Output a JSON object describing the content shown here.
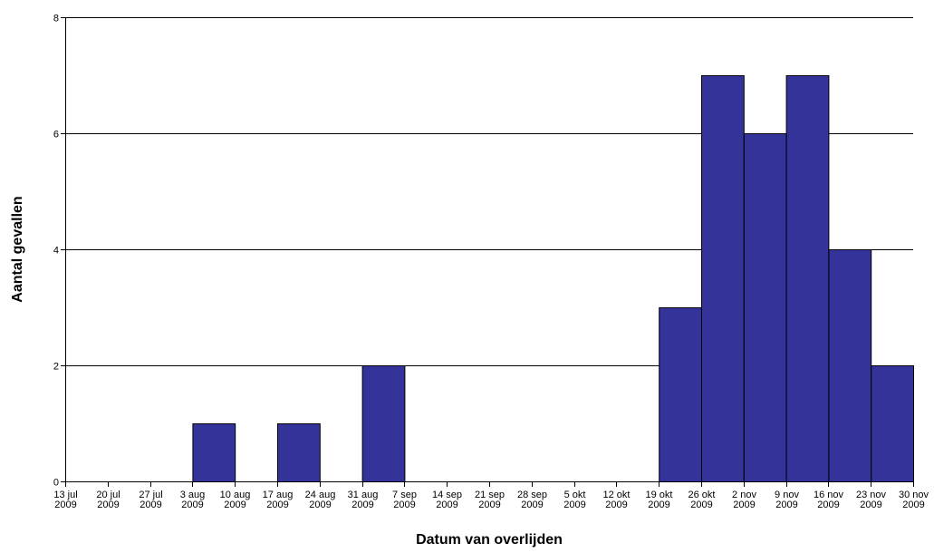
{
  "chart_data": {
    "type": "bar",
    "xlabel": "Datum van overlijden",
    "ylabel": "Aantal gevallen",
    "ylim": [
      0,
      8
    ],
    "yticks": [
      0,
      2,
      4,
      6,
      8
    ],
    "grid": "horizontal",
    "bar_color": "#333399",
    "tick_labels": [
      [
        "13 jul",
        "2009"
      ],
      [
        "20 jul",
        "2009"
      ],
      [
        "27 jul",
        "2009"
      ],
      [
        "3 aug",
        "2009"
      ],
      [
        "10 aug",
        "2009"
      ],
      [
        "17 aug",
        "2009"
      ],
      [
        "24 aug",
        "2009"
      ],
      [
        "31 aug",
        "2009"
      ],
      [
        "7 sep",
        "2009"
      ],
      [
        "14 sep",
        "2009"
      ],
      [
        "21 sep",
        "2009"
      ],
      [
        "28 sep",
        "2009"
      ],
      [
        "5 okt",
        "2009"
      ],
      [
        "12 okt",
        "2009"
      ],
      [
        "19 okt",
        "2009"
      ],
      [
        "26 okt",
        "2009"
      ],
      [
        "2 nov",
        "2009"
      ],
      [
        "9 nov",
        "2009"
      ],
      [
        "16 nov",
        "2009"
      ],
      [
        "23 nov",
        "2009"
      ],
      [
        "30 nov",
        "2009"
      ]
    ],
    "bins": [
      {
        "start": "13 jul 2009",
        "end": "20 jul 2009",
        "value": 0
      },
      {
        "start": "20 jul 2009",
        "end": "27 jul 2009",
        "value": 0
      },
      {
        "start": "27 jul 2009",
        "end": "3 aug 2009",
        "value": 0
      },
      {
        "start": "3 aug 2009",
        "end": "10 aug 2009",
        "value": 1
      },
      {
        "start": "10 aug 2009",
        "end": "17 aug 2009",
        "value": 0
      },
      {
        "start": "17 aug 2009",
        "end": "24 aug 2009",
        "value": 1
      },
      {
        "start": "24 aug 2009",
        "end": "31 aug 2009",
        "value": 0
      },
      {
        "start": "31 aug 2009",
        "end": "7 sep 2009",
        "value": 2
      },
      {
        "start": "7 sep 2009",
        "end": "14 sep 2009",
        "value": 0
      },
      {
        "start": "14 sep 2009",
        "end": "21 sep 2009",
        "value": 0
      },
      {
        "start": "21 sep 2009",
        "end": "28 sep 2009",
        "value": 0
      },
      {
        "start": "28 sep 2009",
        "end": "5 okt 2009",
        "value": 0
      },
      {
        "start": "5 okt 2009",
        "end": "12 okt 2009",
        "value": 0
      },
      {
        "start": "12 okt 2009",
        "end": "19 okt 2009",
        "value": 0
      },
      {
        "start": "19 okt 2009",
        "end": "26 okt 2009",
        "value": 3
      },
      {
        "start": "26 okt 2009",
        "end": "2 nov 2009",
        "value": 7
      },
      {
        "start": "2 nov 2009",
        "end": "9 nov 2009",
        "value": 6
      },
      {
        "start": "9 nov 2009",
        "end": "16 nov 2009",
        "value": 7
      },
      {
        "start": "16 nov 2009",
        "end": "23 nov 2009",
        "value": 4
      },
      {
        "start": "23 nov 2009",
        "end": "30 nov 2009",
        "value": 2
      }
    ]
  }
}
